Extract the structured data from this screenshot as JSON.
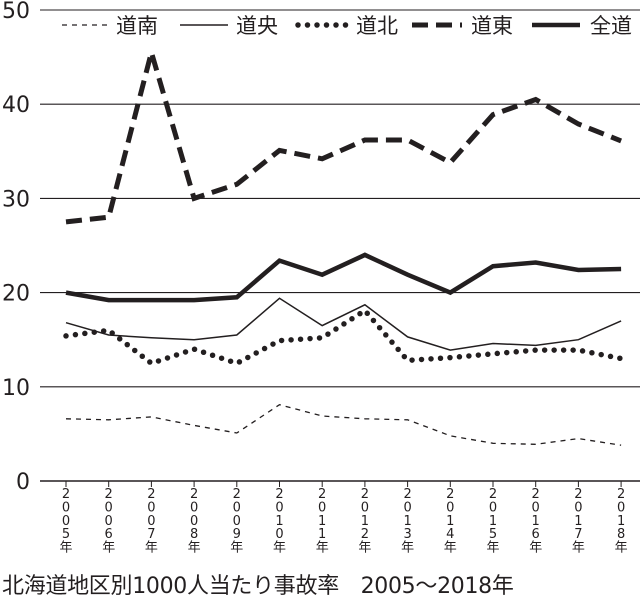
{
  "chart_data": {
    "type": "line",
    "title": "北海道地区別1000人当たり事故率　2005〜2018年",
    "xlabel": "",
    "ylabel": "",
    "ylim": [
      0,
      50
    ],
    "yticks": [
      "0",
      "10",
      "20",
      "30",
      "40",
      "50"
    ],
    "grid": true,
    "legend_position": "top",
    "categories": [
      "2005年",
      "2006年",
      "2007年",
      "2008年",
      "2009年",
      "2010年",
      "2011年",
      "2012年",
      "2013年",
      "2014年",
      "2015年",
      "2016年",
      "2017年",
      "2018年"
    ],
    "series": [
      {
        "name": "道南",
        "style": "thin-dashed",
        "color": "#231f20",
        "values": [
          6.6,
          6.5,
          6.8,
          5.9,
          5.1,
          8.1,
          6.9,
          6.6,
          6.5,
          4.8,
          4.0,
          3.9,
          4.5,
          3.8
        ]
      },
      {
        "name": "道央",
        "style": "thin-solid",
        "color": "#231f20",
        "values": [
          16.8,
          15.5,
          15.2,
          15.0,
          15.5,
          19.4,
          16.5,
          18.7,
          15.3,
          13.9,
          14.6,
          14.4,
          15.0,
          17.0
        ]
      },
      {
        "name": "道北",
        "style": "dotted",
        "color": "#231f20",
        "values": [
          15.4,
          16.0,
          12.5,
          14.0,
          12.5,
          14.9,
          15.2,
          18.1,
          12.8,
          13.1,
          13.5,
          13.9,
          13.9,
          13.0
        ]
      },
      {
        "name": "道東",
        "style": "thick-dashed",
        "color": "#231f20",
        "values": [
          27.5,
          28.0,
          45.5,
          30.0,
          31.5,
          35.1,
          34.2,
          36.2,
          36.2,
          33.8,
          38.9,
          40.5,
          37.9,
          36.1
        ]
      },
      {
        "name": "全道",
        "style": "thick-solid",
        "color": "#231f20",
        "values": [
          20.0,
          19.2,
          19.2,
          19.2,
          19.5,
          23.4,
          21.9,
          24.0,
          21.9,
          20.0,
          22.8,
          23.2,
          22.4,
          22.5
        ]
      }
    ]
  }
}
